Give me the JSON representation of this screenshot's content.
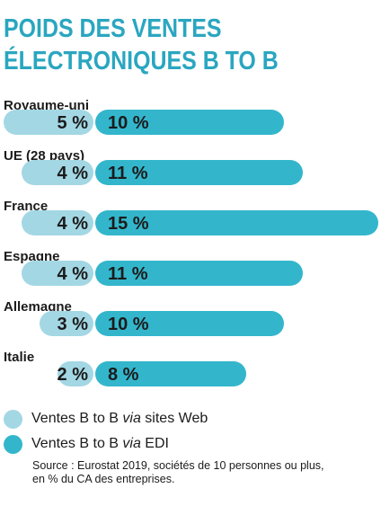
{
  "title": {
    "line1": "POIDS DES VENTES",
    "line2": "ÉLECTRONIQUES B TO B"
  },
  "colors": {
    "title": "#2aa6c0",
    "web": "#a3d7e4",
    "edi": "#33b6cc",
    "text": "#1b1b1b"
  },
  "legend": {
    "web": {
      "prefix": "Ventes B to B ",
      "italic": "via",
      "suffix": " sites Web"
    },
    "edi": {
      "prefix": "Ventes B to B ",
      "italic": "via",
      "suffix": " EDI"
    }
  },
  "source": {
    "line1": "Source : Eurostat 2019, sociétés de 10 personnes ou plus,",
    "line2": "en % du CA des entreprises."
  },
  "chart_data": {
    "type": "bar",
    "orientation": "horizontal",
    "stacked": true,
    "categories": [
      "Royaume-uni",
      "UE (28 pays)",
      "France",
      "Espagne",
      "Allemagne",
      "Italie"
    ],
    "series": [
      {
        "name": "Ventes B to B via sites Web",
        "values": [
          5,
          4,
          4,
          4,
          3,
          2
        ],
        "labels": [
          "5 %",
          "4 %",
          "4 %",
          "4 %",
          "3 %",
          "2 %"
        ]
      },
      {
        "name": "Ventes B to B via EDI",
        "values": [
          10,
          11,
          15,
          11,
          10,
          8
        ],
        "labels": [
          "10 %",
          "11 %",
          "15 %",
          "11 %",
          "10 %",
          "8 %"
        ]
      }
    ],
    "unit": "%",
    "legend_position": "bottom-left",
    "grid": false
  }
}
